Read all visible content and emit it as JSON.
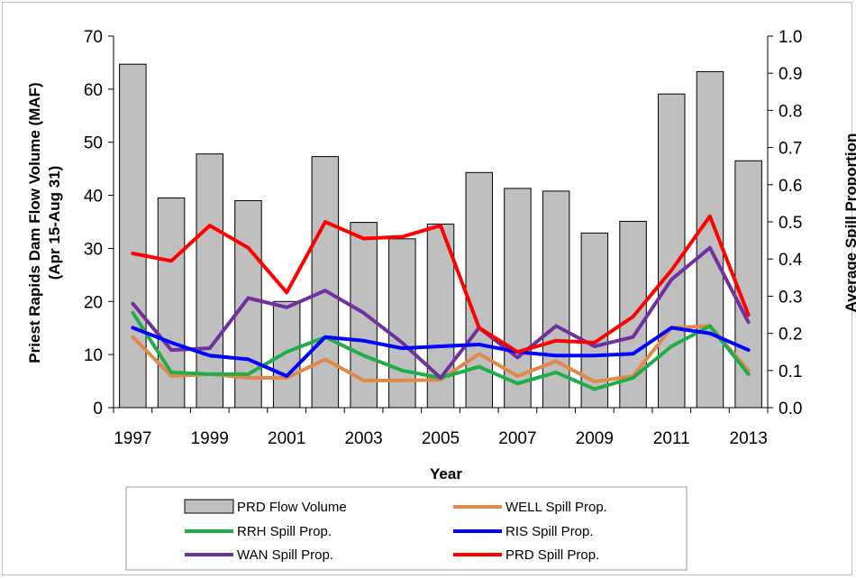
{
  "chart_data": {
    "type": "bar+line",
    "title": "",
    "xlabel": "Year",
    "ylabel_left": [
      "Priest Rapids Dam Flow Volume (MAF)",
      "(Apr 15-Aug 31)"
    ],
    "ylabel_right": "Average Spill Proportion",
    "ylim_left": [
      0,
      70
    ],
    "ylim_right": [
      0,
      1.0
    ],
    "yticks_left": [
      "0",
      "10",
      "20",
      "30",
      "40",
      "50",
      "60",
      "70"
    ],
    "yticks_right": [
      "0.0",
      "0.1",
      "0.2",
      "0.3",
      "0.4",
      "0.5",
      "0.6",
      "0.7",
      "0.8",
      "0.9",
      "1.0"
    ],
    "x": [
      1997,
      1998,
      1999,
      2000,
      2001,
      2002,
      2003,
      2004,
      2005,
      2006,
      2007,
      2008,
      2009,
      2010,
      2011,
      2012,
      2013
    ],
    "xtick_labels": [
      "1997",
      "1999",
      "2001",
      "2003",
      "2005",
      "2007",
      "2009",
      "2011",
      "2013"
    ],
    "grid": false,
    "legend_position": "bottom",
    "bars": {
      "name": "PRD Flow Volume",
      "color": "#bfbfbf",
      "values": [
        64.7,
        39.5,
        47.8,
        39.0,
        20.0,
        47.3,
        34.9,
        31.8,
        34.6,
        44.3,
        41.3,
        40.8,
        32.9,
        35.1,
        59.1,
        63.3,
        46.5
      ]
    },
    "series": [
      {
        "name": "WELL Spill Prop.",
        "color": "#e0894a",
        "values": [
          0.19,
          0.085,
          0.09,
          0.08,
          0.08,
          0.13,
          0.073,
          0.073,
          0.075,
          0.145,
          0.085,
          0.125,
          0.07,
          0.085,
          0.215,
          0.22,
          0.1
        ]
      },
      {
        "name": "RRH Spill Prop.",
        "color": "#1fad4a",
        "values": [
          0.255,
          0.095,
          0.09,
          0.09,
          0.15,
          0.19,
          0.14,
          0.1,
          0.08,
          0.11,
          0.065,
          0.095,
          0.05,
          0.08,
          0.165,
          0.22,
          0.09
        ]
      },
      {
        "name": "WAN Spill Prop.",
        "color": "#7030a0",
        "values": [
          0.28,
          0.155,
          0.16,
          0.295,
          0.27,
          0.315,
          0.255,
          0.175,
          0.08,
          0.215,
          0.135,
          0.22,
          0.165,
          0.19,
          0.345,
          0.43,
          0.23
        ]
      },
      {
        "name": "RIS Spill Prop.",
        "color": "#0000ff",
        "values": [
          0.215,
          0.175,
          0.14,
          0.13,
          0.085,
          0.19,
          0.18,
          0.16,
          0.165,
          0.17,
          0.15,
          0.14,
          0.14,
          0.145,
          0.215,
          0.2,
          0.155
        ]
      },
      {
        "name": "PRD Spill Prop.",
        "color": "#ff0000",
        "values": [
          0.415,
          0.395,
          0.49,
          0.43,
          0.31,
          0.5,
          0.455,
          0.46,
          0.49,
          0.215,
          0.15,
          0.18,
          0.175,
          0.245,
          0.37,
          0.515,
          0.25
        ]
      }
    ]
  },
  "legend": {
    "left": [
      "PRD Flow Volume",
      "RRH Spill Prop.",
      "WAN Spill Prop."
    ],
    "right": [
      "WELL Spill Prop.",
      "RIS Spill Prop.",
      "PRD Spill Prop."
    ]
  }
}
